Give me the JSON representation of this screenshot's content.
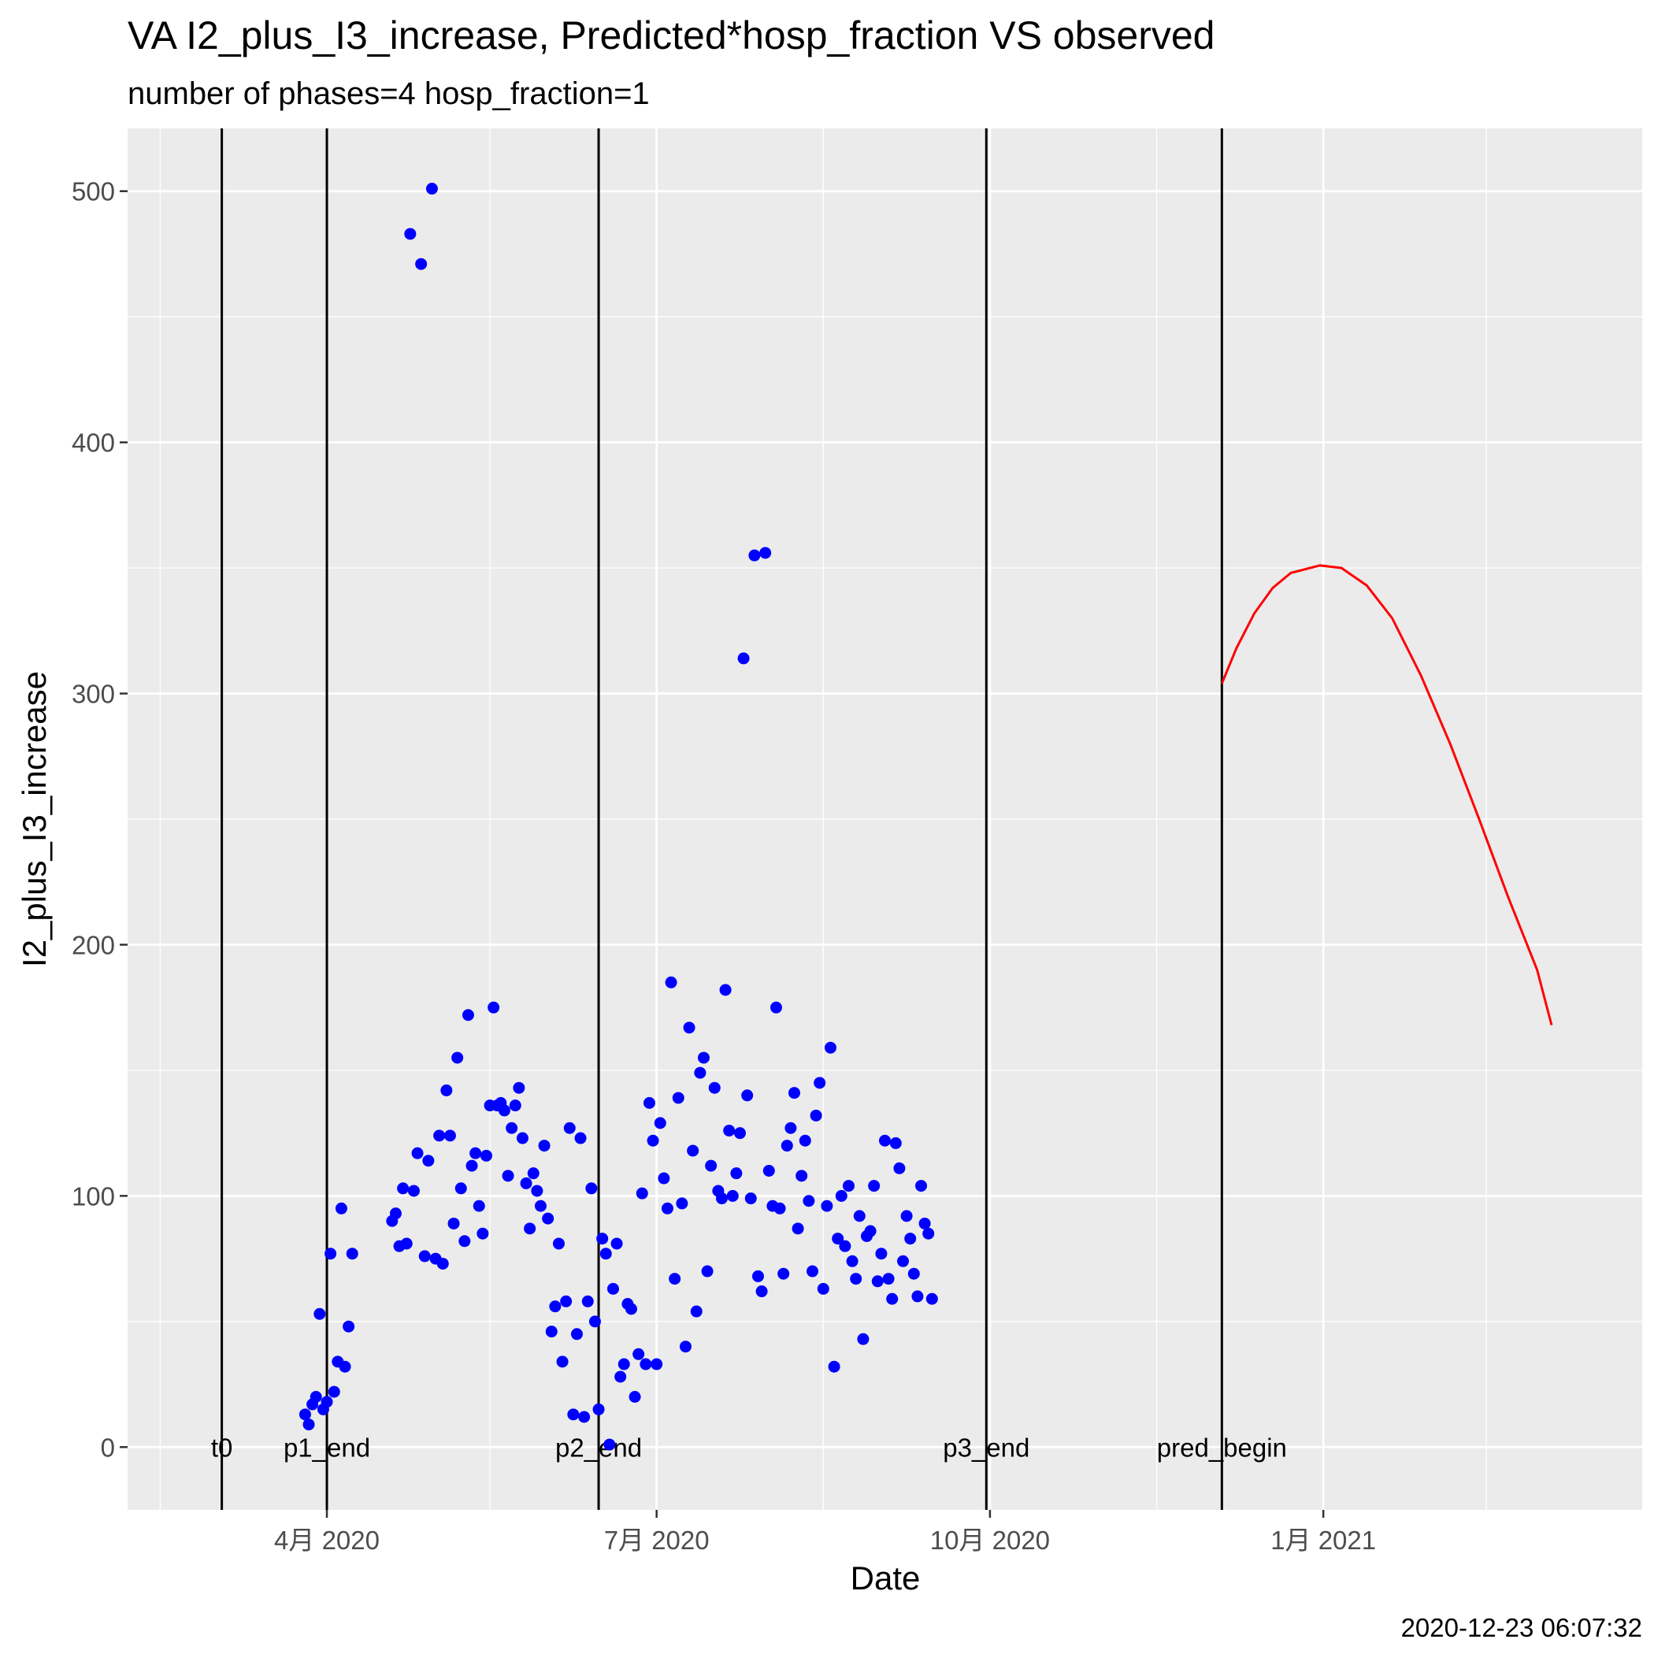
{
  "chart_data": {
    "type": "scatter",
    "title": "VA I2_plus_I3_increase, Predicted*hosp_fraction VS observed",
    "subtitle": "number of phases=4   hosp_fraction=1",
    "xlabel": "Date",
    "ylabel": "I2_plus_I3_increase",
    "caption": "2020-12-23 06:07:32",
    "x_range": [
      "2020-02-06",
      "2021-03-30"
    ],
    "ylim": [
      -25,
      525
    ],
    "grid": true,
    "x_ticks": [
      {
        "date": "2020-04-01",
        "label": "4月 2020"
      },
      {
        "date": "2020-07-01",
        "label": "7月 2020"
      },
      {
        "date": "2020-10-01",
        "label": "10月 2020"
      },
      {
        "date": "2021-01-01",
        "label": "1月 2021"
      }
    ],
    "x_minor_ticks": [
      "2020-02-15",
      "2020-05-16",
      "2020-08-16",
      "2020-11-16",
      "2021-02-15"
    ],
    "y_ticks": [
      0,
      100,
      200,
      300,
      400,
      500
    ],
    "y_minor_ticks": [
      50,
      150,
      250,
      350,
      450
    ],
    "colors": {
      "observed": "#0000ff",
      "predicted": "#ff0000",
      "phase_line": "#000000",
      "panel": "#ebebeb",
      "grid": "#ffffff"
    },
    "phase_lines": [
      {
        "date": "2020-03-03",
        "label": "t0"
      },
      {
        "date": "2020-04-01",
        "label": "p1_end"
      },
      {
        "date": "2020-06-15",
        "label": "p2_end"
      },
      {
        "date": "2020-09-30",
        "label": "p3_end"
      },
      {
        "date": "2020-12-04",
        "label": "pred_begin"
      }
    ],
    "series": [
      {
        "style": "points",
        "color": "#0000ff",
        "points": [
          [
            "2020-03-26",
            13
          ],
          [
            "2020-03-27",
            9
          ],
          [
            "2020-03-28",
            17
          ],
          [
            "2020-03-29",
            20
          ],
          [
            "2020-03-30",
            53
          ],
          [
            "2020-03-31",
            15
          ],
          [
            "2020-04-01",
            18
          ],
          [
            "2020-04-02",
            77
          ],
          [
            "2020-04-03",
            22
          ],
          [
            "2020-04-04",
            34
          ],
          [
            "2020-04-05",
            95
          ],
          [
            "2020-04-06",
            32
          ],
          [
            "2020-04-07",
            48
          ],
          [
            "2020-04-08",
            77
          ],
          [
            "2020-04-19",
            90
          ],
          [
            "2020-04-20",
            93
          ],
          [
            "2020-04-21",
            80
          ],
          [
            "2020-04-22",
            103
          ],
          [
            "2020-04-23",
            81
          ],
          [
            "2020-04-24",
            483
          ],
          [
            "2020-04-25",
            102
          ],
          [
            "2020-04-26",
            117
          ],
          [
            "2020-04-27",
            471
          ],
          [
            "2020-04-28",
            76
          ],
          [
            "2020-04-29",
            114
          ],
          [
            "2020-04-30",
            501
          ],
          [
            "2020-05-01",
            75
          ],
          [
            "2020-05-02",
            124
          ],
          [
            "2020-05-03",
            73
          ],
          [
            "2020-05-04",
            142
          ],
          [
            "2020-05-05",
            124
          ],
          [
            "2020-05-06",
            89
          ],
          [
            "2020-05-07",
            155
          ],
          [
            "2020-05-08",
            103
          ],
          [
            "2020-05-09",
            82
          ],
          [
            "2020-05-10",
            172
          ],
          [
            "2020-05-11",
            112
          ],
          [
            "2020-05-12",
            117
          ],
          [
            "2020-05-13",
            96
          ],
          [
            "2020-05-14",
            85
          ],
          [
            "2020-05-15",
            116
          ],
          [
            "2020-05-16",
            136
          ],
          [
            "2020-05-17",
            175
          ],
          [
            "2020-05-18",
            136
          ],
          [
            "2020-05-19",
            137
          ],
          [
            "2020-05-20",
            134
          ],
          [
            "2020-05-21",
            108
          ],
          [
            "2020-05-22",
            127
          ],
          [
            "2020-05-23",
            136
          ],
          [
            "2020-05-24",
            143
          ],
          [
            "2020-05-25",
            123
          ],
          [
            "2020-05-26",
            105
          ],
          [
            "2020-05-27",
            87
          ],
          [
            "2020-05-28",
            109
          ],
          [
            "2020-05-29",
            102
          ],
          [
            "2020-05-30",
            96
          ],
          [
            "2020-05-31",
            120
          ],
          [
            "2020-06-01",
            91
          ],
          [
            "2020-06-02",
            46
          ],
          [
            "2020-06-03",
            56
          ],
          [
            "2020-06-04",
            81
          ],
          [
            "2020-06-05",
            34
          ],
          [
            "2020-06-06",
            58
          ],
          [
            "2020-06-07",
            127
          ],
          [
            "2020-06-08",
            13
          ],
          [
            "2020-06-09",
            45
          ],
          [
            "2020-06-10",
            123
          ],
          [
            "2020-06-11",
            12
          ],
          [
            "2020-06-12",
            58
          ],
          [
            "2020-06-13",
            103
          ],
          [
            "2020-06-14",
            50
          ],
          [
            "2020-06-15",
            15
          ],
          [
            "2020-06-16",
            83
          ],
          [
            "2020-06-17",
            77
          ],
          [
            "2020-06-18",
            1
          ],
          [
            "2020-06-19",
            63
          ],
          [
            "2020-06-20",
            81
          ],
          [
            "2020-06-21",
            28
          ],
          [
            "2020-06-22",
            33
          ],
          [
            "2020-06-23",
            57
          ],
          [
            "2020-06-24",
            55
          ],
          [
            "2020-06-25",
            20
          ],
          [
            "2020-06-26",
            37
          ],
          [
            "2020-06-27",
            101
          ],
          [
            "2020-06-28",
            33
          ],
          [
            "2020-06-29",
            137
          ],
          [
            "2020-06-30",
            122
          ],
          [
            "2020-07-01",
            33
          ],
          [
            "2020-07-02",
            129
          ],
          [
            "2020-07-03",
            107
          ],
          [
            "2020-07-04",
            95
          ],
          [
            "2020-07-05",
            185
          ],
          [
            "2020-07-06",
            67
          ],
          [
            "2020-07-07",
            139
          ],
          [
            "2020-07-08",
            97
          ],
          [
            "2020-07-09",
            40
          ],
          [
            "2020-07-10",
            167
          ],
          [
            "2020-07-11",
            118
          ],
          [
            "2020-07-12",
            54
          ],
          [
            "2020-07-13",
            149
          ],
          [
            "2020-07-14",
            155
          ],
          [
            "2020-07-15",
            70
          ],
          [
            "2020-07-16",
            112
          ],
          [
            "2020-07-17",
            143
          ],
          [
            "2020-07-18",
            102
          ],
          [
            "2020-07-19",
            99
          ],
          [
            "2020-07-20",
            182
          ],
          [
            "2020-07-21",
            126
          ],
          [
            "2020-07-22",
            100
          ],
          [
            "2020-07-23",
            109
          ],
          [
            "2020-07-24",
            125
          ],
          [
            "2020-07-25",
            314
          ],
          [
            "2020-07-26",
            140
          ],
          [
            "2020-07-27",
            99
          ],
          [
            "2020-07-28",
            355
          ],
          [
            "2020-07-29",
            68
          ],
          [
            "2020-07-30",
            62
          ],
          [
            "2020-07-31",
            356
          ],
          [
            "2020-08-01",
            110
          ],
          [
            "2020-08-02",
            96
          ],
          [
            "2020-08-03",
            175
          ],
          [
            "2020-08-04",
            95
          ],
          [
            "2020-08-05",
            69
          ],
          [
            "2020-08-06",
            120
          ],
          [
            "2020-08-07",
            127
          ],
          [
            "2020-08-08",
            141
          ],
          [
            "2020-08-09",
            87
          ],
          [
            "2020-08-10",
            108
          ],
          [
            "2020-08-11",
            122
          ],
          [
            "2020-08-12",
            98
          ],
          [
            "2020-08-13",
            70
          ],
          [
            "2020-08-14",
            132
          ],
          [
            "2020-08-15",
            145
          ],
          [
            "2020-08-16",
            63
          ],
          [
            "2020-08-17",
            96
          ],
          [
            "2020-08-18",
            159
          ],
          [
            "2020-08-19",
            32
          ],
          [
            "2020-08-20",
            83
          ],
          [
            "2020-08-21",
            100
          ],
          [
            "2020-08-22",
            80
          ],
          [
            "2020-08-23",
            104
          ],
          [
            "2020-08-24",
            74
          ],
          [
            "2020-08-25",
            67
          ],
          [
            "2020-08-26",
            92
          ],
          [
            "2020-08-27",
            43
          ],
          [
            "2020-08-28",
            84
          ],
          [
            "2020-08-29",
            86
          ],
          [
            "2020-08-30",
            104
          ],
          [
            "2020-08-31",
            66
          ],
          [
            "2020-09-01",
            77
          ],
          [
            "2020-09-02",
            122
          ],
          [
            "2020-09-03",
            67
          ],
          [
            "2020-09-04",
            59
          ],
          [
            "2020-09-05",
            121
          ],
          [
            "2020-09-06",
            111
          ],
          [
            "2020-09-07",
            74
          ],
          [
            "2020-09-08",
            92
          ],
          [
            "2020-09-09",
            83
          ],
          [
            "2020-09-10",
            69
          ],
          [
            "2020-09-11",
            60
          ],
          [
            "2020-09-12",
            104
          ],
          [
            "2020-09-13",
            89
          ],
          [
            "2020-09-14",
            85
          ],
          [
            "2020-09-15",
            59
          ]
        ]
      },
      {
        "style": "line",
        "color": "#ff0000",
        "points": [
          [
            "2020-12-04",
            304
          ],
          [
            "2020-12-08",
            318
          ],
          [
            "2020-12-13",
            332
          ],
          [
            "2020-12-18",
            342
          ],
          [
            "2020-12-23",
            348
          ],
          [
            "2020-12-31",
            351
          ],
          [
            "2021-01-06",
            350
          ],
          [
            "2021-01-13",
            343
          ],
          [
            "2021-01-20",
            330
          ],
          [
            "2021-01-28",
            307
          ],
          [
            "2021-02-05",
            280
          ],
          [
            "2021-02-13",
            250
          ],
          [
            "2021-02-21",
            219
          ],
          [
            "2021-03-01",
            190
          ],
          [
            "2021-03-05",
            168
          ]
        ]
      }
    ]
  }
}
